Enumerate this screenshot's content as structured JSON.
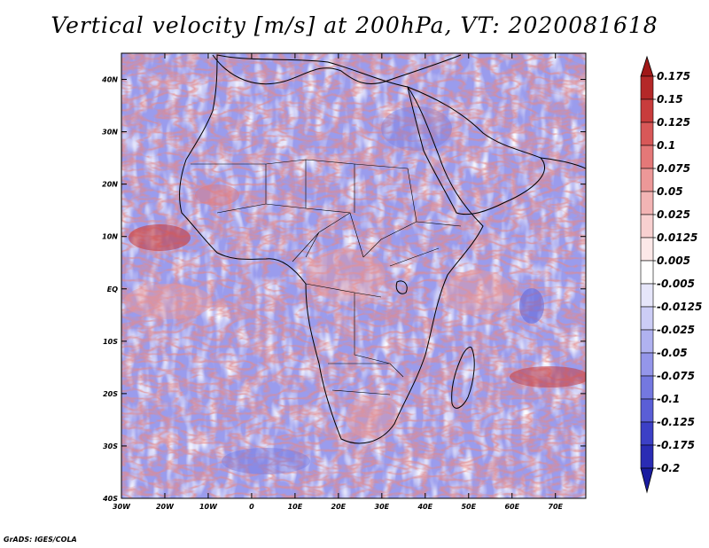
{
  "title": "Vertical velocity [m/s] at 200hPa, VT: 2020081618",
  "credit": "GrADS: IGES/COLA",
  "map": {
    "lat_labels": [
      "40N",
      "30N",
      "20N",
      "10N",
      "EQ",
      "10S",
      "20S",
      "30S",
      "40S"
    ],
    "lat_values": [
      40,
      30,
      20,
      10,
      0,
      -10,
      -20,
      -30,
      -40
    ],
    "lon_labels": [
      "30W",
      "20W",
      "10W",
      "0",
      "10E",
      "20E",
      "30E",
      "40E",
      "50E",
      "60E",
      "70E"
    ],
    "lon_values": [
      -30,
      -20,
      -10,
      0,
      10,
      20,
      30,
      40,
      50,
      60,
      70
    ],
    "lon_range": [
      -30,
      77
    ],
    "lat_range": [
      -40,
      45
    ]
  },
  "colorbar": {
    "labels": [
      "0.175",
      "0.15",
      "0.125",
      "0.1",
      "0.075",
      "0.05",
      "0.025",
      "0.0125",
      "0.005",
      "-0.005",
      "-0.0125",
      "-0.025",
      "-0.05",
      "-0.075",
      "-0.1",
      "-0.125",
      "-0.175",
      "-0.2"
    ],
    "colors": [
      "#a01818",
      "#b42828",
      "#c83c3c",
      "#d85858",
      "#e47878",
      "#ec9898",
      "#f2b4b4",
      "#f8d0d0",
      "#fce8e8",
      "#ffffff",
      "#e6e6fa",
      "#cccdf6",
      "#b0b2f0",
      "#9496ea",
      "#7478e0",
      "#5a5ed6",
      "#3c40c6",
      "#2a2cb4",
      "#1a1ca0"
    ]
  }
}
